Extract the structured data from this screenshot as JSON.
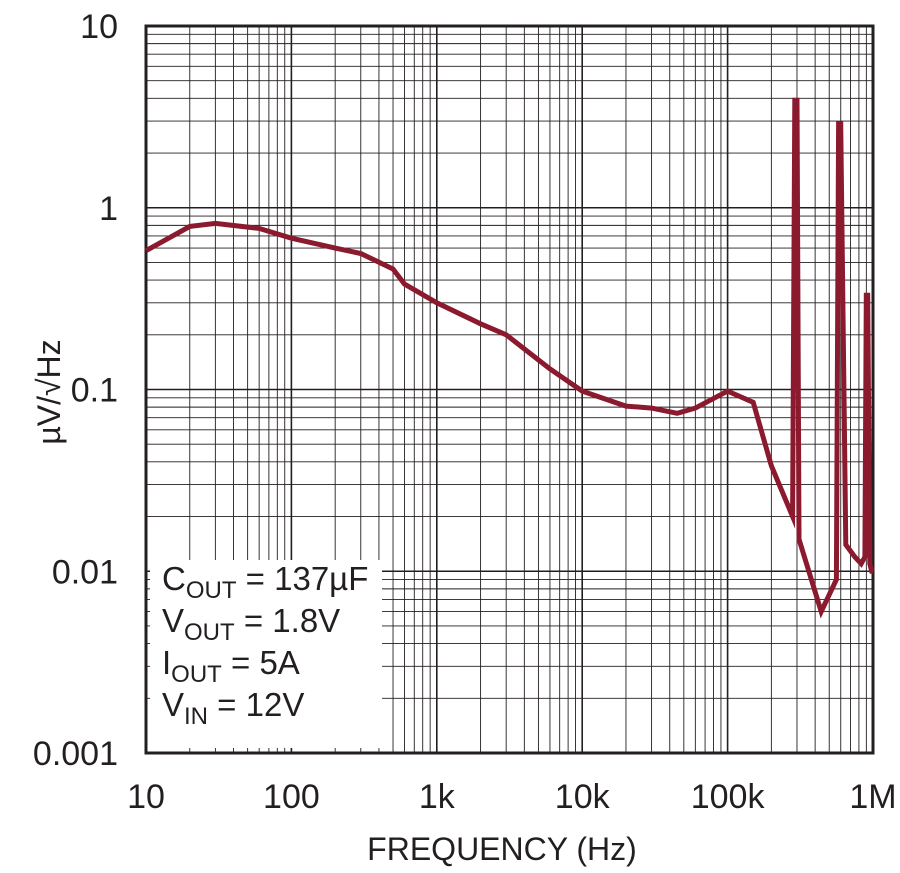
{
  "chart_data": {
    "type": "line",
    "title": "",
    "xlabel": "FREQUENCY (Hz)",
    "ylabel": "µV/√Hz",
    "x_scale": "log",
    "y_scale": "log",
    "xlim": [
      10,
      1000000
    ],
    "ylim": [
      0.001,
      10
    ],
    "grid": true,
    "x_ticks": [
      10,
      100,
      1000,
      10000,
      100000,
      1000000
    ],
    "x_tick_labels": [
      "10",
      "100",
      "1k",
      "10k",
      "100k",
      "1M"
    ],
    "y_ticks": [
      0.001,
      0.01,
      0.1,
      1,
      10
    ],
    "y_tick_labels": [
      "0.001",
      "0.01",
      "0.1",
      "1",
      "10"
    ],
    "line_color": "#8b1a2e",
    "series": [
      {
        "x": [
          10,
          20,
          30,
          60,
          100,
          200,
          300,
          500,
          600,
          1000,
          2000,
          3000,
          6000,
          10000,
          20000,
          30000,
          45000,
          60000,
          100000,
          150000,
          200000,
          280000,
          290000,
          300000,
          310000,
          440000,
          560000,
          580000,
          600000,
          650000,
          750000,
          830000,
          880000,
          900000,
          920000,
          950000,
          980000,
          1000000
        ],
        "y": [
          0.58,
          0.79,
          0.82,
          0.77,
          0.68,
          0.6,
          0.56,
          0.46,
          0.38,
          0.3,
          0.23,
          0.2,
          0.13,
          0.098,
          0.081,
          0.079,
          0.074,
          0.079,
          0.098,
          0.085,
          0.038,
          0.02,
          3.9,
          3.9,
          0.015,
          0.006,
          0.009,
          2.9,
          2.9,
          0.014,
          0.012,
          0.011,
          0.012,
          0.33,
          0.33,
          0.011,
          0.01,
          0.01
        ]
      }
    ],
    "annotations": [
      {
        "main": "C",
        "sub": "OUT",
        "rest": " = 137µF"
      },
      {
        "main": "V",
        "sub": "OUT",
        "rest": " = 1.8V"
      },
      {
        "main": "I",
        "sub": "OUT",
        "rest": " = 5A"
      },
      {
        "main": "V",
        "sub": "IN",
        "rest": " = 12V"
      }
    ]
  }
}
